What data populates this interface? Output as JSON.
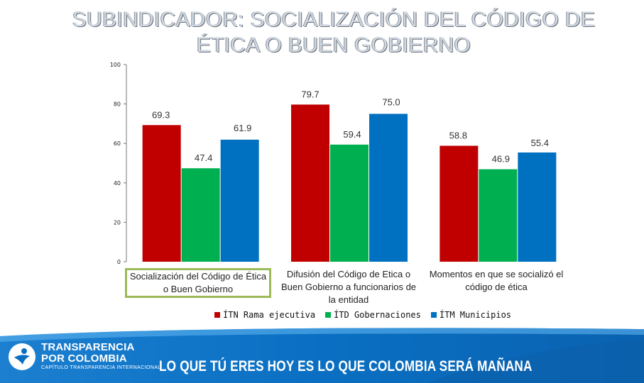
{
  "title_line1": "SUBINDICADOR: SOCIALIZACIÓN DEL CÓDIGO DE",
  "title_line2": "ÉTICA O BUEN GOBIERNO",
  "chart_data": {
    "type": "bar",
    "title": "SUBINDICADOR: SOCIALIZACIÓN DEL CÓDIGO DE ÉTICA O BUEN GOBIERNO",
    "ylim": [
      0,
      100
    ],
    "yticks": [
      0,
      20,
      40,
      60,
      80,
      100
    ],
    "categories": [
      "Socialización del Código de Ética o Buen Gobierno",
      "Difusión del Código de Etica o Buen Gobierno a funcionarios de la entidad",
      "Momentos en que se socializó el código de ética"
    ],
    "series": [
      {
        "name": "ÍTN Rama ejecutiva",
        "color": "#c00000",
        "values": [
          69.3,
          79.7,
          58.8
        ]
      },
      {
        "name": "ÍTD Gobernaciones",
        "color": "#00b050",
        "values": [
          47.4,
          59.4,
          46.9
        ]
      },
      {
        "name": "ÍTM Municipios",
        "color": "#0070c0",
        "values": [
          61.9,
          75.0,
          55.4
        ]
      }
    ],
    "data_labels": [
      [
        "69.3",
        "79.7",
        "58.8"
      ],
      [
        "47.4",
        "59.4",
        "46.9"
      ],
      [
        "61.9",
        "75.0",
        "55.4"
      ]
    ]
  },
  "categories_display": [
    {
      "line1": "Socialización del Código de Ética",
      "line2": "o Buen Gobierno"
    },
    {
      "line1": "Difusión del Código de Etica o",
      "line2": "Buen Gobierno a funcionarios de",
      "line3": "la entidad"
    },
    {
      "line1": "Momentos en que se socializó el",
      "line2": "código de ética"
    }
  ],
  "legend": [
    {
      "label": "ÍTN Rama ejecutiva",
      "color": "#c00000"
    },
    {
      "label": "ÍTD Gobernaciones",
      "color": "#00b050"
    },
    {
      "label": "ÍTM Municipios",
      "color": "#0070c0"
    }
  ],
  "footer": {
    "org_line1": "TRANSPARENCIA",
    "org_line2": "POR COLOMBIA",
    "org_sub": "CAPÍTULO TRANSPARENCIA INTERNACIONAL",
    "slogan": "LO QUE TÚ ERES HOY ES LO QUE COLOMBIA SERÁ MAÑANA",
    "colors": {
      "primary": "#0a6fc2",
      "light": "#5eb3ee"
    }
  }
}
